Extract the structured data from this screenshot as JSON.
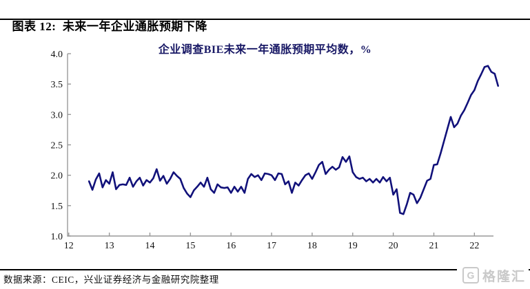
{
  "header": {
    "title": "图表 12:  未来一年企业通胀预期下降"
  },
  "chart_data": {
    "type": "line",
    "title": "企业调查BIE未来一年通胀预期平均数，%",
    "xlabel": "",
    "ylabel": "",
    "xlim": [
      11.97,
      22.47
    ],
    "ylim": [
      1.0,
      4.0
    ],
    "grid": false,
    "legend": "none",
    "axis_color": "#999999",
    "line_color": "#11117a",
    "x_ticks": [
      12,
      13,
      14,
      15,
      16,
      17,
      18,
      19,
      20,
      21,
      22
    ],
    "x_tick_labels": [
      "12",
      "13",
      "14",
      "15",
      "16",
      "17",
      "18",
      "19",
      "20",
      "21",
      "22"
    ],
    "y_ticks": [
      1.0,
      1.5,
      2.0,
      2.5,
      3.0,
      3.5,
      4.0
    ],
    "y_tick_labels": [
      "1.0",
      "1.5",
      "2.0",
      "2.5",
      "3.0",
      "3.5",
      "4.0"
    ],
    "series": [
      {
        "name": "企业调查BIE未来一年通胀预期平均数",
        "x_start": 12.5,
        "x_step": 0.083333,
        "values": [
          1.9,
          1.76,
          1.93,
          2.03,
          1.8,
          1.92,
          1.86,
          2.05,
          1.77,
          1.84,
          1.85,
          1.84,
          1.96,
          1.81,
          1.9,
          1.96,
          1.83,
          1.92,
          1.88,
          1.95,
          2.1,
          1.91,
          1.99,
          1.86,
          1.94,
          2.05,
          1.99,
          1.94,
          1.79,
          1.7,
          1.64,
          1.75,
          1.81,
          1.88,
          1.81,
          1.96,
          1.77,
          1.71,
          1.85,
          1.8,
          1.79,
          1.8,
          1.71,
          1.81,
          1.73,
          1.81,
          1.71,
          1.94,
          2.02,
          1.97,
          2.0,
          1.92,
          2.03,
          2.02,
          2.0,
          1.92,
          2.03,
          2.02,
          1.85,
          1.9,
          1.71,
          1.88,
          1.83,
          1.92,
          2.0,
          2.03,
          1.94,
          2.05,
          2.17,
          2.22,
          2.02,
          2.09,
          2.14,
          2.09,
          2.13,
          2.3,
          2.22,
          2.31,
          2.05,
          1.97,
          1.94,
          1.96,
          1.9,
          1.94,
          1.88,
          1.94,
          1.88,
          1.97,
          1.9,
          1.96,
          1.68,
          1.77,
          1.38,
          1.36,
          1.52,
          1.71,
          1.68,
          1.54,
          1.63,
          1.77,
          1.91,
          1.94,
          2.17,
          2.18,
          2.36,
          2.56,
          2.76,
          2.96,
          2.79,
          2.85,
          2.98,
          3.07,
          3.19,
          3.32,
          3.4,
          3.55,
          3.66,
          3.78,
          3.8,
          3.7,
          3.67,
          3.47
        ]
      }
    ]
  },
  "footer": {
    "source": "数据来源：CEIC，兴业证券经济与金融研究院整理"
  },
  "watermark": {
    "icon": "G",
    "text": "格隆汇"
  }
}
